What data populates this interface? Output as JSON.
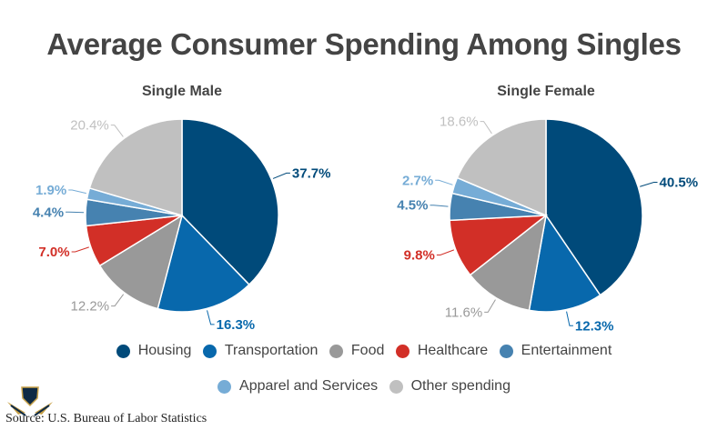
{
  "chart_data": [
    {
      "type": "pie",
      "title": "Average Consumer Spending Among Singles",
      "subtitle": "Single Male",
      "categories": [
        "Housing",
        "Transportation",
        "Food",
        "Healthcare",
        "Entertainment",
        "Apparel and Services",
        "Other spending"
      ],
      "values": [
        37.7,
        16.3,
        12.2,
        7.0,
        4.4,
        1.9,
        20.4
      ],
      "labels": [
        "37.7%",
        "16.3%",
        "12.2%",
        "7.0%",
        "4.4%",
        "1.9%",
        "20.4%"
      ]
    },
    {
      "type": "pie",
      "title": "Average Consumer Spending Among Singles",
      "subtitle": "Single Female",
      "categories": [
        "Housing",
        "Transportation",
        "Food",
        "Healthcare",
        "Entertainment",
        "Apparel and Services",
        "Other spending"
      ],
      "values": [
        40.5,
        12.3,
        11.6,
        9.8,
        4.5,
        2.7,
        18.6
      ],
      "labels": [
        "40.5%",
        "12.3%",
        "11.6%",
        "9.8%",
        "4.5%",
        "2.7%",
        "18.6%"
      ]
    }
  ],
  "title": "Average Consumer Spending Among Singles",
  "subtitles": [
    "Single Male",
    "Single Female"
  ],
  "legend": [
    {
      "label": "Housing",
      "color": "#004a7a"
    },
    {
      "label": "Transportation",
      "color": "#0868ac"
    },
    {
      "label": "Food",
      "color": "#999999"
    },
    {
      "label": "Healthcare",
      "color": "#d22f27"
    },
    {
      "label": "Entertainment",
      "color": "#4682b0"
    },
    {
      "label": "Apparel and Services",
      "color": "#76acd6"
    },
    {
      "label": "Other spending",
      "color": "#c0c0c0"
    }
  ],
  "label_colors": [
    "#004a7a",
    "#0868ac",
    "#999999",
    "#d22f27",
    "#4682b0",
    "#76acd6",
    "#c0c0c0"
  ],
  "source": "Source: U.S. Bureau of Labor Statistics"
}
